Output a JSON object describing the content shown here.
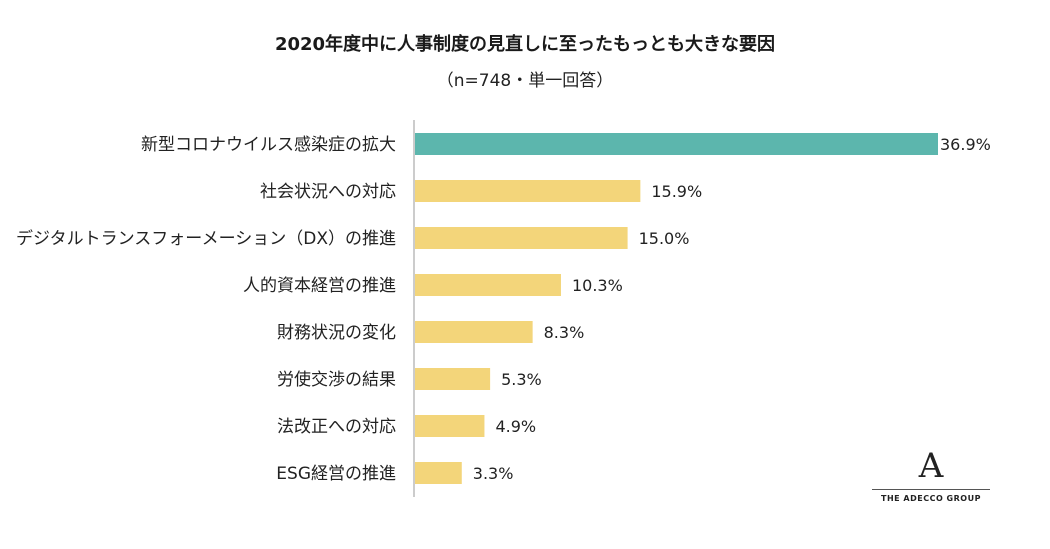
{
  "chart_data": {
    "type": "bar",
    "orientation": "horizontal",
    "title": "2020年度中に人事制度の見直しに至ったもっとも大きな要因",
    "subtitle": "（n=748・単一回答）",
    "categories": [
      "新型コロナウイルス感染症の拡大",
      "社会状況への対応",
      "デジタルトランスフォーメーション（DX）の推進",
      "人的資本経営の推進",
      "財務状況の変化",
      "労使交渉の結果",
      "法改正への対応",
      "ESG経営の推進"
    ],
    "values": [
      36.9,
      15.9,
      15.0,
      10.3,
      8.3,
      5.3,
      4.9,
      3.3
    ],
    "value_labels": [
      "36.9%",
      "15.9%",
      "15.0%",
      "10.3%",
      "8.3%",
      "5.3%",
      "4.9%",
      "3.3%"
    ],
    "unit": "%",
    "xlim": [
      0,
      36.9
    ],
    "colors": {
      "highlight": "#5cb6ad",
      "default": "#f3d57a",
      "axis": "#999999"
    },
    "highlight_index": 0,
    "xlabel": "",
    "ylabel": ""
  },
  "logo": {
    "mark": "A",
    "text": "THE ADECCO GROUP"
  }
}
